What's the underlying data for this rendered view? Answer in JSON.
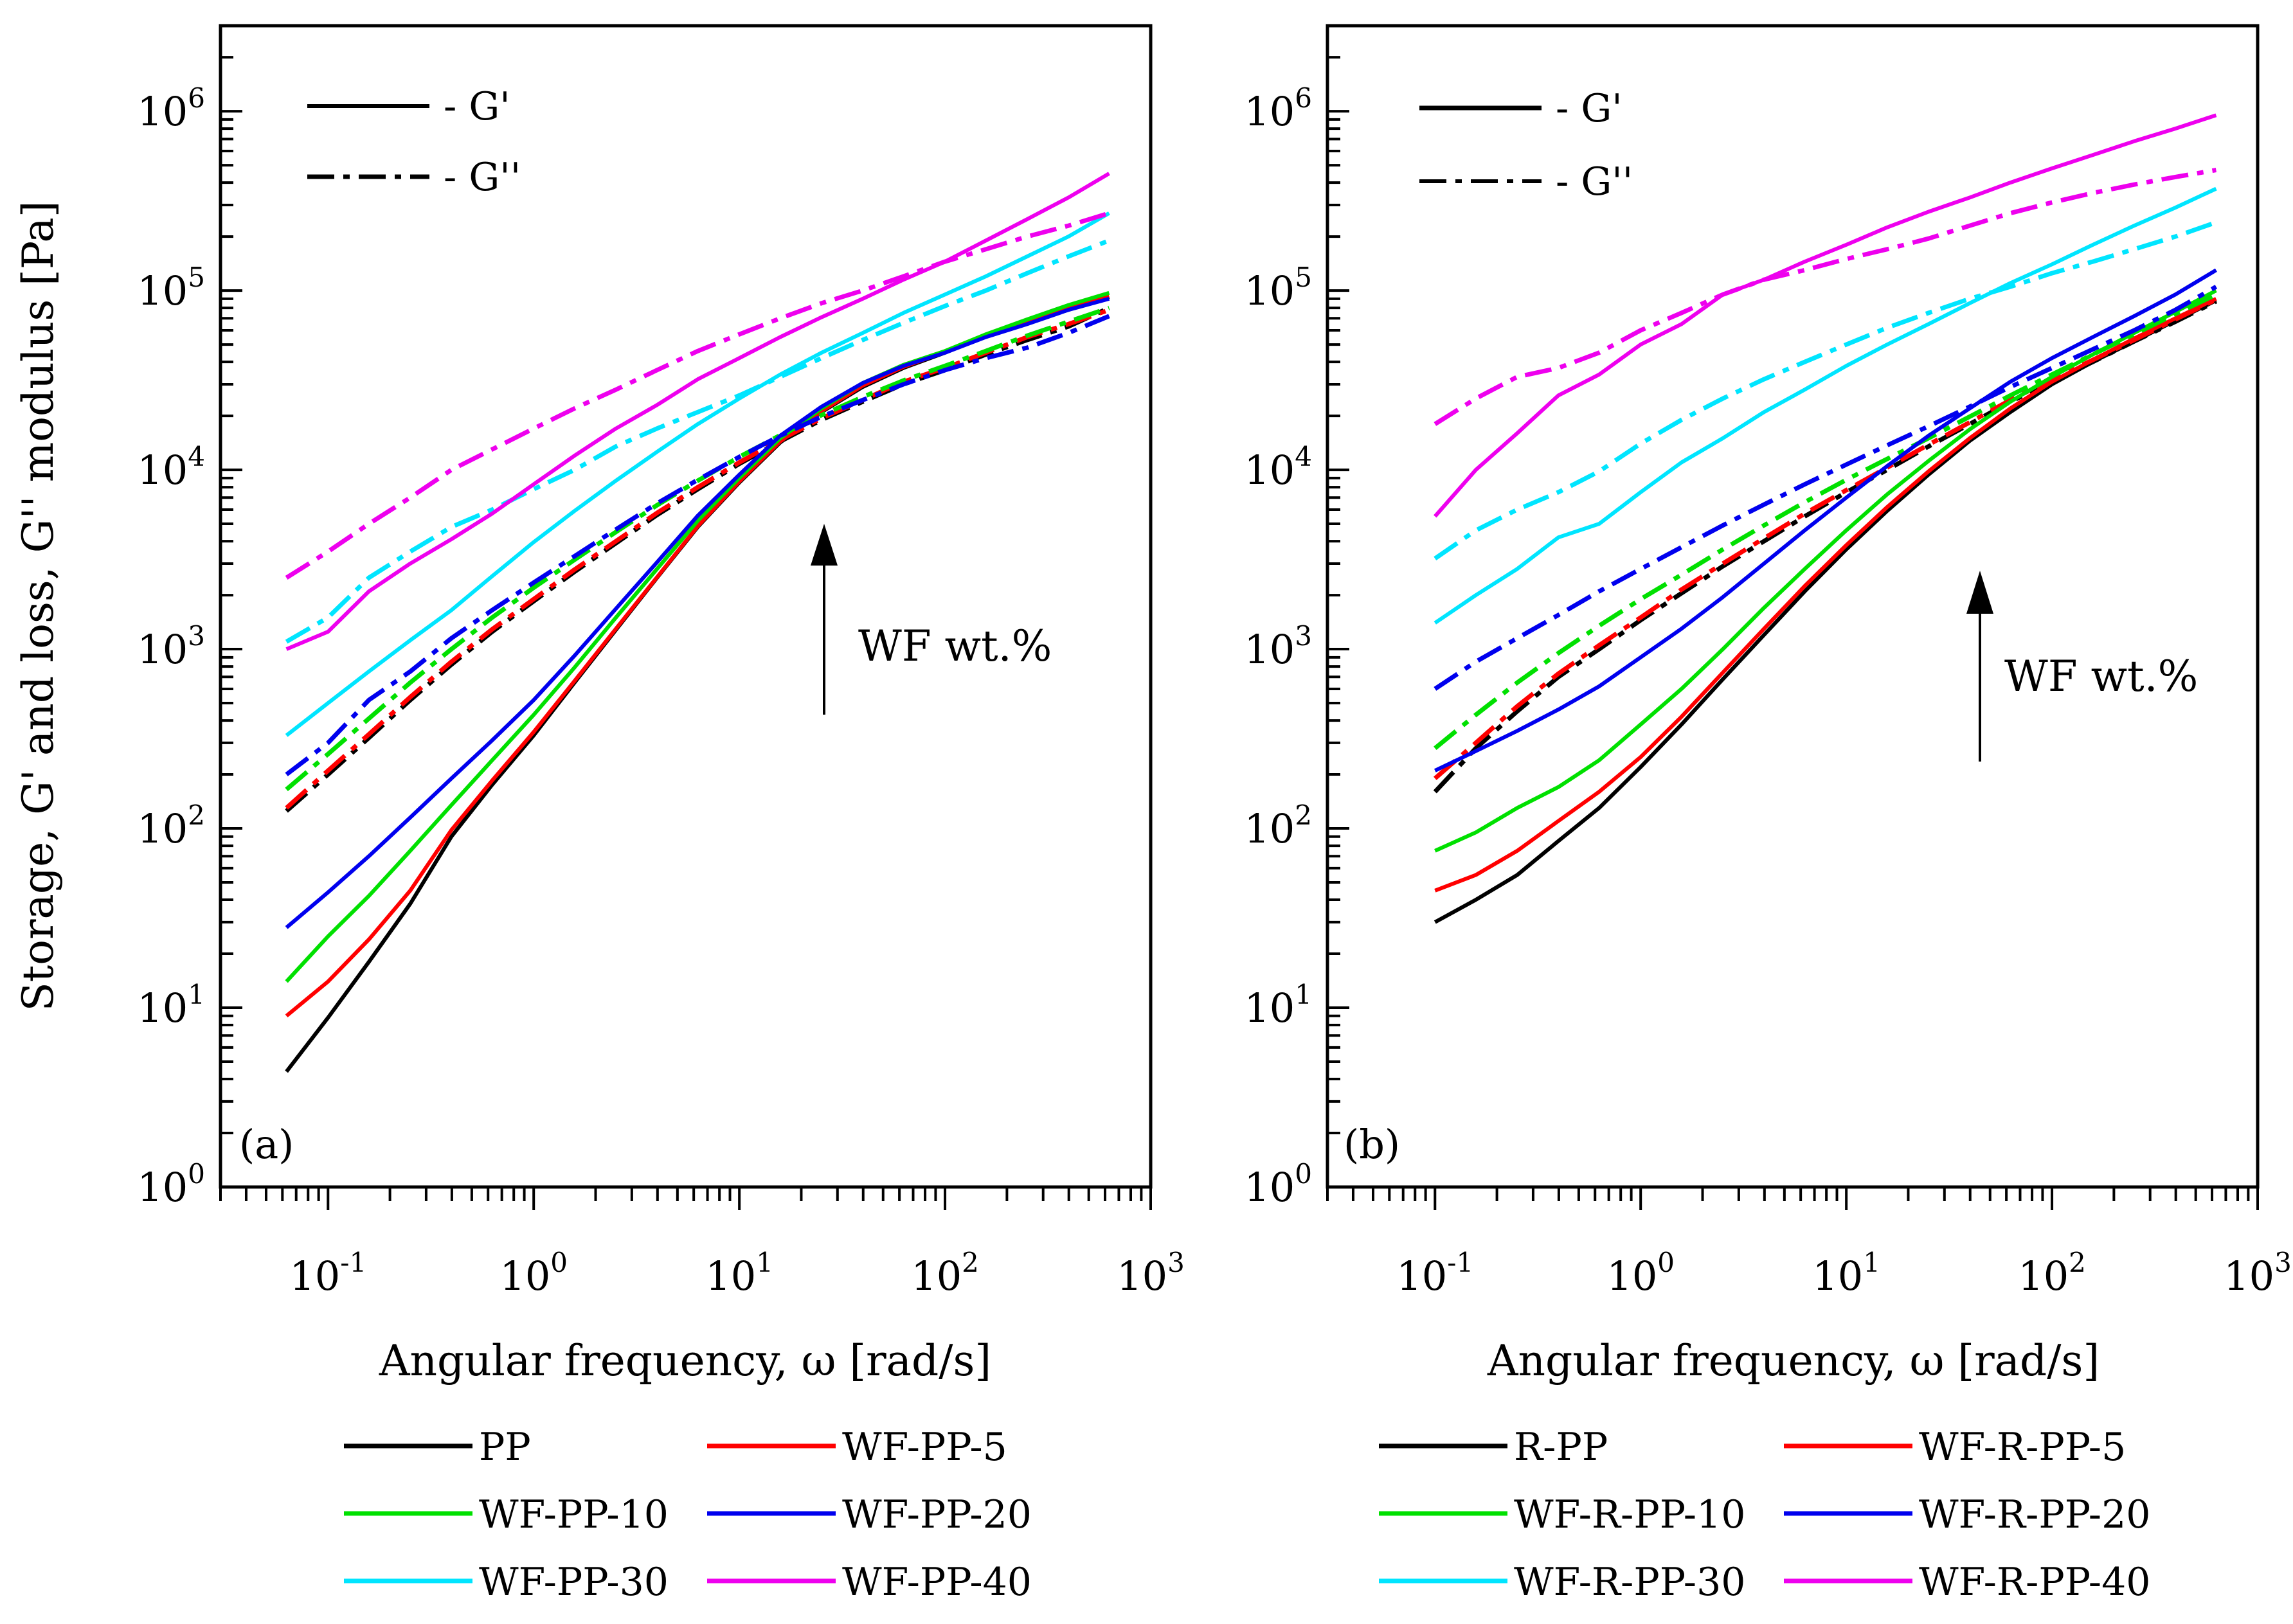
{
  "colors": {
    "PP": "#000000",
    "WF5": "#ff0000",
    "WF10": "#00e000",
    "WF20": "#0000ee",
    "WF30": "#00e5ff",
    "WF40": "#ee00ee"
  },
  "chart_data": [
    {
      "type": "line",
      "panel_label": "(a)",
      "xlabel": "Angular frequency, ω [rad/s]",
      "ylabel": "Storage, G' and loss, G'' modulus [Pa]",
      "xscale": "log",
      "yscale": "log",
      "xlim": [
        0.03,
        1000
      ],
      "ylim": [
        1,
        3000000
      ],
      "x_ticks": [
        {
          "base": "10",
          "exp": "-1"
        },
        {
          "base": "10",
          "exp": "0"
        },
        {
          "base": "10",
          "exp": "1"
        },
        {
          "base": "10",
          "exp": "2"
        },
        {
          "base": "10",
          "exp": "3"
        }
      ],
      "y_ticks": [
        {
          "base": "10",
          "exp": "0"
        },
        {
          "base": "10",
          "exp": "1"
        },
        {
          "base": "10",
          "exp": "2"
        },
        {
          "base": "10",
          "exp": "3"
        },
        {
          "base": "10",
          "exp": "4"
        },
        {
          "base": "10",
          "exp": "5"
        },
        {
          "base": "10",
          "exp": "6"
        }
      ],
      "line_key": [
        {
          "label": "- G'",
          "style": "solid"
        },
        {
          "label": "- G''",
          "style": "dashdot"
        }
      ],
      "annotation": "WF wt.%",
      "x": [
        0.0628,
        0.1,
        0.158,
        0.251,
        0.398,
        0.628,
        1,
        1.58,
        2.51,
        3.98,
        6.28,
        10,
        15.8,
        25.1,
        39.8,
        62.8,
        100,
        158,
        251,
        398,
        628
      ],
      "series": [
        {
          "name": "PP",
          "colorKey": "PP",
          "storage": [
            4.4,
            8.8,
            18,
            38,
            90,
            175,
            330,
            650,
            1280,
            2500,
            4800,
            8500,
            14200,
            21000,
            29000,
            37000,
            45000,
            56000,
            66000,
            78000,
            92000
          ],
          "loss": [
            125,
            200,
            320,
            520,
            820,
            1250,
            1850,
            2700,
            3900,
            5600,
            7800,
            10800,
            14400,
            19000,
            24000,
            30000,
            36000,
            44000,
            53000,
            63000,
            80000
          ]
        },
        {
          "name": "WF-PP-5",
          "colorKey": "WF5",
          "storage": [
            9,
            14,
            24,
            45,
            98,
            185,
            345,
            665,
            1300,
            2520,
            4850,
            8600,
            14400,
            21200,
            29500,
            37500,
            45500,
            56500,
            67000,
            80000,
            93000
          ],
          "loss": [
            130,
            210,
            335,
            540,
            850,
            1290,
            1900,
            2780,
            4000,
            5750,
            8000,
            11000,
            14700,
            19400,
            24500,
            31000,
            37000,
            45000,
            55000,
            65000,
            78000
          ]
        },
        {
          "name": "WF-PP-10",
          "colorKey": "WF10",
          "storage": [
            14,
            25,
            42,
            75,
            135,
            240,
            430,
            790,
            1500,
            2800,
            5200,
            9000,
            15000,
            22000,
            30500,
            38500,
            46000,
            57000,
            69000,
            83000,
            97000
          ],
          "loss": [
            165,
            260,
            410,
            650,
            1000,
            1500,
            2200,
            3150,
            4500,
            6350,
            8700,
            11800,
            15600,
            20200,
            25500,
            31500,
            38000,
            46000,
            56000,
            67000,
            80000
          ]
        },
        {
          "name": "WF-PP-20",
          "colorKey": "WF20",
          "storage": [
            28,
            44,
            70,
            115,
            190,
            310,
            520,
            920,
            1680,
            3050,
            5550,
            9400,
            15500,
            22500,
            30500,
            38000,
            45000,
            55000,
            65000,
            78000,
            90000
          ],
          "loss": [
            200,
            300,
            520,
            750,
            1150,
            1650,
            2350,
            3300,
            4650,
            6500,
            8800,
            11800,
            15500,
            19800,
            24500,
            30000,
            36000,
            42000,
            48000,
            58000,
            72000
          ]
        },
        {
          "name": "WF-PP-30",
          "colorKey": "WF30",
          "storage": [
            330,
            500,
            750,
            1120,
            1650,
            2550,
            3950,
            5900,
            8700,
            12600,
            18000,
            25000,
            34000,
            45000,
            58000,
            75000,
            95000,
            120000,
            155000,
            200000,
            270000
          ],
          "loss": [
            1100,
            1500,
            2500,
            3500,
            4800,
            6000,
            7800,
            10000,
            13500,
            17000,
            21000,
            26000,
            33000,
            42000,
            53000,
            66000,
            82000,
            100000,
            125000,
            155000,
            190000
          ]
        },
        {
          "name": "WF-PP-40",
          "colorKey": "WF40",
          "storage": [
            1000,
            1250,
            2100,
            3000,
            4100,
            5700,
            8300,
            12000,
            17000,
            23000,
            32000,
            42000,
            55000,
            71000,
            90000,
            115000,
            145000,
            190000,
            250000,
            330000,
            450000
          ],
          "loss": [
            2500,
            3500,
            5000,
            7000,
            10000,
            13000,
            17000,
            22000,
            28000,
            36000,
            46000,
            57000,
            70000,
            85000,
            100000,
            120000,
            145000,
            170000,
            200000,
            230000,
            270000
          ]
        }
      ]
    },
    {
      "type": "line",
      "panel_label": "(b)",
      "xlabel": "Angular frequency, ω [rad/s]",
      "ylabel": "",
      "xscale": "log",
      "yscale": "log",
      "xlim": [
        0.03,
        1000
      ],
      "ylim": [
        1,
        3000000
      ],
      "x_ticks": [
        {
          "base": "10",
          "exp": "-1"
        },
        {
          "base": "10",
          "exp": "0"
        },
        {
          "base": "10",
          "exp": "1"
        },
        {
          "base": "10",
          "exp": "2"
        },
        {
          "base": "10",
          "exp": "3"
        }
      ],
      "y_ticks": [
        {
          "base": "10",
          "exp": "0"
        },
        {
          "base": "10",
          "exp": "1"
        },
        {
          "base": "10",
          "exp": "2"
        },
        {
          "base": "10",
          "exp": "3"
        },
        {
          "base": "10",
          "exp": "4"
        },
        {
          "base": "10",
          "exp": "5"
        },
        {
          "base": "10",
          "exp": "6"
        }
      ],
      "line_key": [
        {
          "label": "- G'",
          "style": "solid"
        },
        {
          "label": "- G''",
          "style": "dashdot"
        }
      ],
      "annotation": "WF wt.%",
      "x": [
        0.1,
        0.158,
        0.251,
        0.398,
        0.628,
        1,
        1.58,
        2.51,
        3.98,
        6.28,
        10,
        15.8,
        25.1,
        39.8,
        62.8,
        100,
        158,
        251,
        398,
        628
      ],
      "series": [
        {
          "name": "R-PP",
          "colorKey": "PP",
          "storage": [
            30,
            40,
            55,
            85,
            130,
            220,
            380,
            680,
            1200,
            2100,
            3600,
            5900,
            9400,
            14500,
            21000,
            30000,
            40000,
            52000,
            68000,
            88000
          ],
          "loss": [
            160,
            280,
            450,
            700,
            1000,
            1450,
            2050,
            2900,
            4000,
            5500,
            7500,
            10000,
            13500,
            18000,
            24000,
            31000,
            40000,
            52000,
            67000,
            87000
          ]
        },
        {
          "name": "WF-R-PP-5",
          "colorKey": "WF5",
          "storage": [
            45,
            55,
            75,
            110,
            160,
            250,
            420,
            740,
            1300,
            2250,
            3800,
            6200,
            9800,
            15000,
            22000,
            31000,
            41000,
            54000,
            70000,
            90000
          ],
          "loss": [
            190,
            300,
            480,
            730,
            1050,
            1500,
            2150,
            3000,
            4150,
            5700,
            7700,
            10300,
            13800,
            18400,
            24500,
            32000,
            41000,
            53000,
            69000,
            89000
          ]
        },
        {
          "name": "WF-R-PP-10",
          "colorKey": "WF10",
          "storage": [
            75,
            95,
            130,
            170,
            240,
            380,
            600,
            1000,
            1700,
            2800,
            4600,
            7300,
            11200,
            16800,
            24000,
            33000,
            44000,
            58000,
            76000,
            100000
          ],
          "loss": [
            280,
            430,
            650,
            950,
            1350,
            1900,
            2600,
            3600,
            4900,
            6600,
            8800,
            11500,
            15000,
            19800,
            26000,
            34000,
            44000,
            57000,
            74000,
            95000
          ]
        },
        {
          "name": "WF-R-PP-20",
          "colorKey": "WF20",
          "storage": [
            210,
            270,
            350,
            460,
            620,
            900,
            1300,
            1950,
            3000,
            4600,
            7000,
            10500,
            15500,
            22000,
            31000,
            42000,
            55000,
            72000,
            95000,
            130000
          ],
          "loss": [
            600,
            850,
            1150,
            1550,
            2100,
            2800,
            3700,
            4900,
            6400,
            8300,
            10700,
            13700,
            17500,
            22500,
            29000,
            37000,
            47000,
            60000,
            78000,
            105000
          ]
        },
        {
          "name": "WF-R-PP-30",
          "colorKey": "WF30",
          "storage": [
            1400,
            2000,
            2800,
            4200,
            5000,
            7500,
            11000,
            15000,
            21000,
            28000,
            38000,
            50000,
            65000,
            85000,
            110000,
            140000,
            180000,
            230000,
            290000,
            370000
          ],
          "loss": [
            3200,
            4600,
            6000,
            7500,
            9800,
            14000,
            19000,
            25000,
            32000,
            40000,
            50000,
            62000,
            75000,
            90000,
            105000,
            125000,
            145000,
            170000,
            200000,
            240000
          ]
        },
        {
          "name": "WF-R-PP-40",
          "colorKey": "WF40",
          "storage": [
            5500,
            10000,
            16000,
            26000,
            34000,
            50000,
            65000,
            95000,
            115000,
            145000,
            180000,
            225000,
            275000,
            330000,
            400000,
            480000,
            570000,
            680000,
            800000,
            950000
          ],
          "loss": [
            18000,
            25000,
            33000,
            37000,
            45000,
            60000,
            75000,
            95000,
            115000,
            130000,
            150000,
            170000,
            195000,
            230000,
            270000,
            310000,
            350000,
            390000,
            430000,
            470000
          ]
        }
      ]
    }
  ]
}
